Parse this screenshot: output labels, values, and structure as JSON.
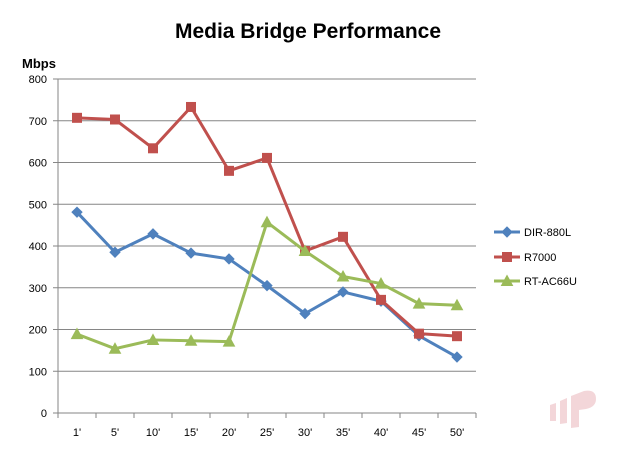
{
  "chart_data": {
    "type": "line",
    "title": "Media Bridge Performance",
    "ylabel": "Mbps",
    "xlabel": "",
    "categories": [
      "1'",
      "5'",
      "10'",
      "15'",
      "20'",
      "25'",
      "30'",
      "35'",
      "40'",
      "45'",
      "50'"
    ],
    "ylim": [
      0,
      800
    ],
    "yticks": [
      0,
      100,
      200,
      300,
      400,
      500,
      600,
      700,
      800
    ],
    "grid": "horizontal",
    "legend": "right",
    "series": [
      {
        "name": "DIR-880L",
        "color": "#4F81BD",
        "marker": "diamond",
        "values": [
          481,
          385,
          429,
          383,
          369,
          305,
          238,
          290,
          268,
          185,
          134
        ]
      },
      {
        "name": "R7000",
        "color": "#C0504D",
        "marker": "square",
        "values": [
          707,
          703,
          634,
          733,
          580,
          611,
          388,
          422,
          271,
          190,
          184
        ]
      },
      {
        "name": "RT-AC66U",
        "color": "#9BBB59",
        "marker": "triangle",
        "values": [
          189,
          154,
          175,
          173,
          171,
          457,
          388,
          327,
          310,
          262,
          258
        ]
      }
    ]
  },
  "watermark": {
    "name": "brand-logo-watermark",
    "color": "#F2D2D5"
  }
}
